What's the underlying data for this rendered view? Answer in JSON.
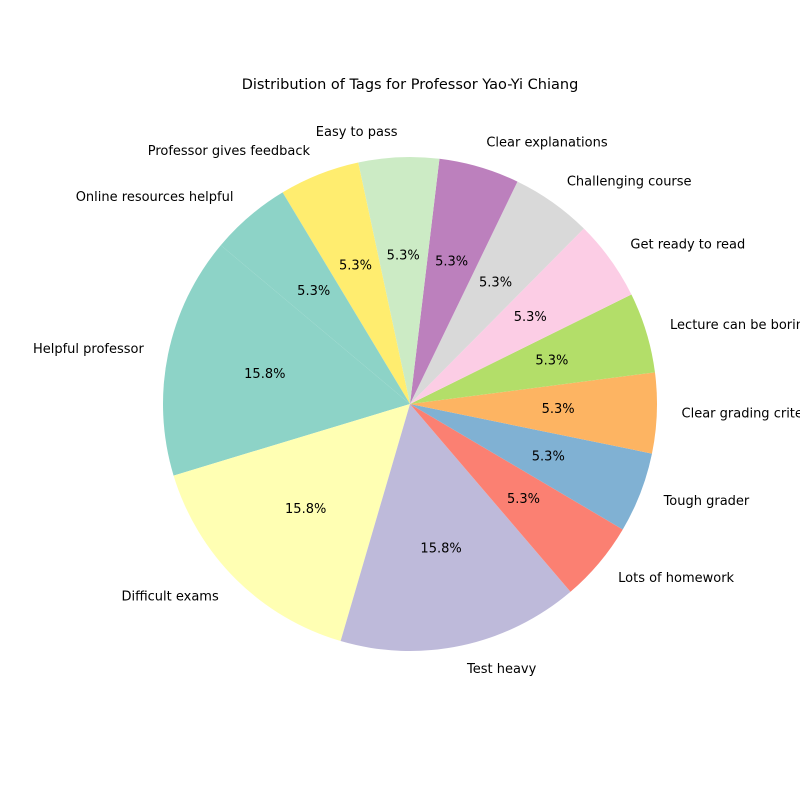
{
  "chart_data": {
    "type": "pie",
    "title": "Distribution of Tags for Professor Yao-Yi Chiang",
    "categories": [
      "Helpful professor",
      "Difficult exams",
      "Test heavy",
      "Lots of homework",
      "Tough grader",
      "Clear grading criteria",
      "Lecture can be boring",
      "Get ready to read",
      "Challenging course",
      "Clear explanations",
      "Easy to pass",
      "Professor gives feedback",
      "Online resources helpful"
    ],
    "values": [
      3,
      3,
      3,
      1,
      1,
      1,
      1,
      1,
      1,
      1,
      1,
      1,
      1
    ],
    "percent_labels": [
      "15.8%",
      "15.8%",
      "15.8%",
      "5.3%",
      "5.3%",
      "5.3%",
      "5.3%",
      "5.3%",
      "5.3%",
      "5.3%",
      "5.3%",
      "5.3%",
      "5.3%"
    ],
    "colors": [
      "#8dd3c7",
      "#ffffb3",
      "#bebada",
      "#fb8072",
      "#80b1d3",
      "#fdb462",
      "#b3de69",
      "#fccde5",
      "#d9d9d9",
      "#bc80bd",
      "#ccebc5",
      "#ffed6f",
      "#8dd3c7"
    ],
    "start_angle_deg": 140,
    "direction": "counterclockwise"
  }
}
